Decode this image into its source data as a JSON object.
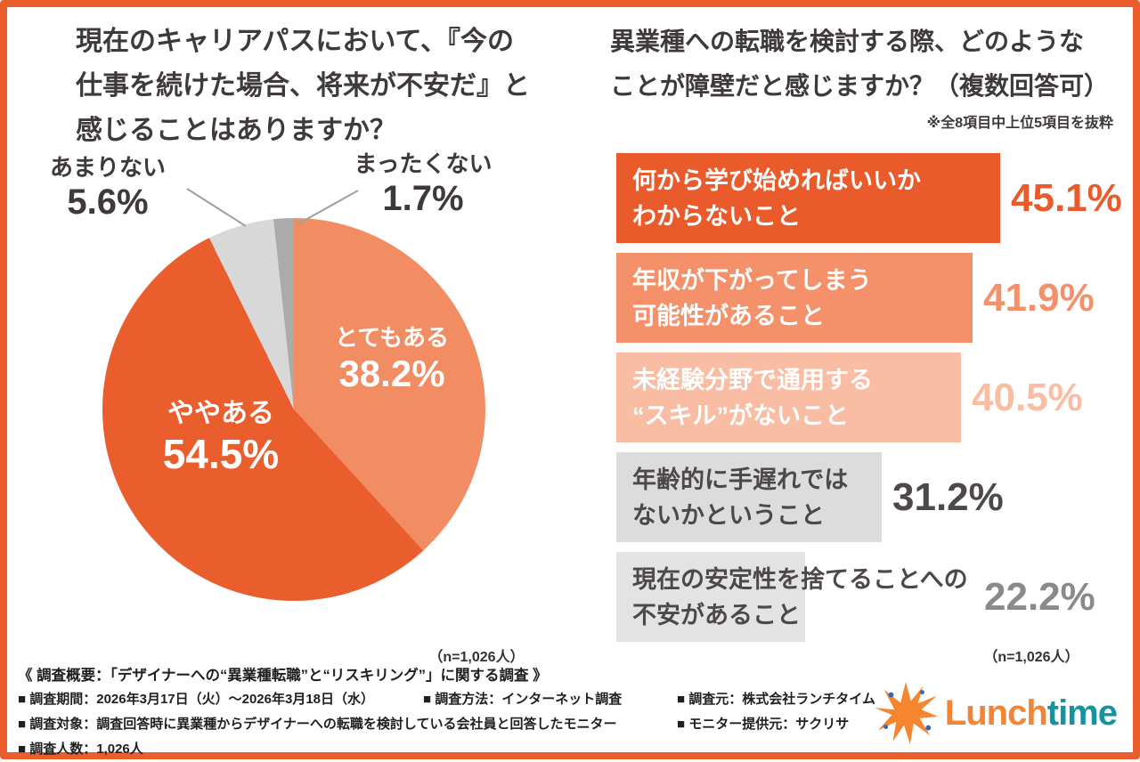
{
  "left": {
    "title_lines": [
      "現在のキャリアパスにおいて、『今の",
      "仕事を続けた場合、将来が不安だ』と",
      "感じることはありますか？"
    ],
    "n_label": "（n=1,026人）",
    "pie": {
      "segments": [
        {
          "label": "とてもある",
          "pct": 38.2,
          "pct_display": "38.2%",
          "color": "#F28C62"
        },
        {
          "label": "ややある",
          "pct": 54.5,
          "pct_display": "54.5%",
          "color": "#EA5E2D"
        },
        {
          "label": "あまりない",
          "pct": 5.6,
          "pct_display": "5.6%",
          "color": "#D8D8D8"
        },
        {
          "label": "まったくない",
          "pct": 1.7,
          "pct_display": "1.7%",
          "color": "#ABABAB"
        }
      ]
    }
  },
  "right": {
    "title_lines": [
      "異業種への転職を検討する際、どのような",
      "ことが障壁だと感じますか？（複数回答可）"
    ],
    "note": "※全8項目中上位5項目を抜粋",
    "n_label": "（n=1,026人）",
    "bars": [
      {
        "line1": "何から学び始めればいいか",
        "line2": "わからないこと",
        "pct": 45.1,
        "pct_display": "45.1%",
        "bar_color": "#E95B2B",
        "label_color": "#FFFFFF",
        "value_color": "#E95B2B"
      },
      {
        "line1": "年収が下がってしまう",
        "line2": "可能性があること",
        "pct": 41.9,
        "pct_display": "41.9%",
        "bar_color": "#F4916B",
        "label_color": "#FFFFFF",
        "value_color": "#F4916B"
      },
      {
        "line1": "未経験分野で通用する",
        "line2": "“スキル”がないこと",
        "pct": 40.5,
        "pct_display": "40.5%",
        "bar_color": "#F9BDA4",
        "label_color": "#FFFFFF",
        "value_color": "#F9BDA4"
      },
      {
        "line1": "年齢的に手遅れでは",
        "line2": "ないかということ",
        "pct": 31.2,
        "pct_display": "31.2%",
        "bar_color": "#DCDCDC",
        "label_color": "#4C4948",
        "value_color": "#4C4948"
      },
      {
        "line1": "現在の安定性を捨てることへの",
        "line2": "不安があること",
        "pct": 22.2,
        "pct_display": "22.2%",
        "bar_color": "#E3E3E3",
        "label_color": "#4C4948",
        "value_color": "#8A8A8A"
      }
    ]
  },
  "footer": {
    "overview": "《 調査概要：「デザイナーへの“異業種転職”と“リスキリング”」に関する調査 》",
    "items_row1": [
      "■ 調査期間：2026年3月17日（火）〜2026年3月18日（水）",
      "■ 調査方法：インターネット調査",
      "■ 調査元：株式会社ランチタイム"
    ],
    "items_row2": [
      "■ 調査対象：調査回答時に異業種からデザイナーへの転職を検討している会社員と回答したモニター",
      "■ モニター提供元：サクリサ"
    ],
    "items_row3": [
      "■ 調査人数：1,026人"
    ]
  },
  "logo": {
    "text_primary": "Lunch",
    "text_secondary": "time",
    "color_primary": "#F08437",
    "color_secondary": "#1593A0",
    "burst_color": "#F5862F",
    "spark_color": "#3566AE"
  },
  "accent_border_color": "#EA5E2D",
  "chart_data": [
    {
      "type": "pie",
      "title": "現在のキャリアパスにおいて、『今の仕事を続けた場合、将来が不安だ』と感じることはありますか？",
      "categories": [
        "とてもある",
        "ややある",
        "あまりない",
        "まったくない"
      ],
      "values": [
        38.2,
        54.5,
        5.6,
        1.7
      ],
      "unit": "%",
      "n": "n=1,026人",
      "colors": [
        "#F28C62",
        "#EA5E2D",
        "#D8D8D8",
        "#ABABAB"
      ],
      "start_angle": "top",
      "direction": "clockwise",
      "legend_position": "labels-on-and-around-pie"
    },
    {
      "type": "bar",
      "orientation": "horizontal",
      "title": "異業種への転職を検討する際、どのようなことが障壁だと感じますか？（複数回答可）",
      "subtitle": "※全8項目中上位5項目を抜粋",
      "categories": [
        "何から学び始めればいいかわからないこと",
        "年収が下がってしまう可能性があること",
        "未経験分野で通用する“スキル”がないこと",
        "年齢的に手遅れではないかということ",
        "現在の安定性を捨てることへの不安があること"
      ],
      "values": [
        45.1,
        41.9,
        40.5,
        31.2,
        22.2
      ],
      "unit": "%",
      "n": "n=1,026人",
      "xlim": [
        0,
        50
      ],
      "grid": false,
      "colors": [
        "#E95B2B",
        "#F4916B",
        "#F9BDA4",
        "#DCDCDC",
        "#E3E3E3"
      ],
      "value_label_colors": [
        "#E95B2B",
        "#F4916B",
        "#F9BDA4",
        "#4C4948",
        "#8A8A8A"
      ]
    }
  ]
}
